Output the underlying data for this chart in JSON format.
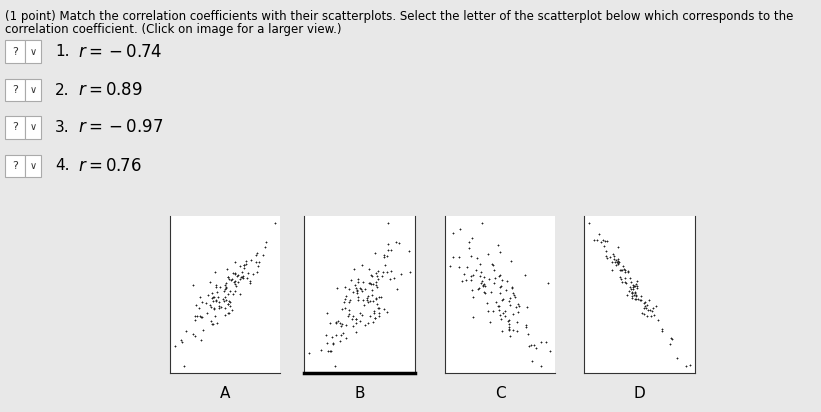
{
  "bg_color": "#e8e8e8",
  "header_line1": "(1 point) Match the correlation coefficients with their scatterplots. Select the letter of the scatterplot below which corresponds to the",
  "header_line2": "correlation coefficient. (Click on image for a larger view.)",
  "items": [
    {
      "num": "1.",
      "expr": "r = -0.74"
    },
    {
      "num": "2.",
      "expr": "r = 0.89"
    },
    {
      "num": "3.",
      "expr": "r = -0.97"
    },
    {
      "num": "4.",
      "expr": "r = 0.76"
    }
  ],
  "scatter_labels": [
    "A",
    "B",
    "C",
    "D"
  ],
  "scatter_configs": [
    {
      "r": 0.89,
      "n": 120,
      "seed": 42,
      "bg": "white"
    },
    {
      "r": 0.76,
      "n": 130,
      "seed": 7,
      "bg": "white"
    },
    {
      "r": -0.74,
      "n": 110,
      "seed": 13,
      "bg": "white"
    },
    {
      "r": -0.97,
      "n": 100,
      "seed": 99,
      "bg": "white"
    }
  ],
  "dot_color": "#222222",
  "dot_size": 4,
  "text_color": "#000000",
  "header_fontsize": 8.5,
  "item_fontsize": 11,
  "expr_fontsize": 12,
  "label_fontsize": 11
}
